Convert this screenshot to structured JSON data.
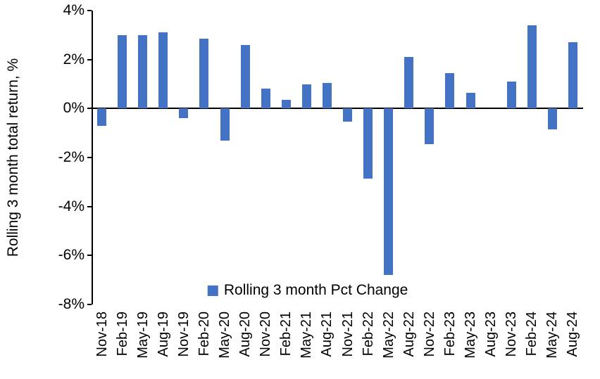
{
  "chart_data": {
    "type": "bar",
    "title": "",
    "xlabel": "",
    "ylabel": "Rolling 3 month total return, %",
    "ylim": [
      -8,
      4
    ],
    "yticks": [
      4,
      2,
      0,
      -2,
      -4,
      -6,
      -8
    ],
    "ytick_labels": [
      "4%",
      "2%",
      "0%",
      "-2%",
      "-4%",
      "-6%",
      "-8%"
    ],
    "grid": false,
    "bar_color": "#4472C4",
    "legend": {
      "label": "Rolling 3 month Pct Change",
      "color": "#4472C4",
      "position": "bottom-center-inside"
    },
    "categories": [
      "Nov-18",
      "Feb-19",
      "May-19",
      "Aug-19",
      "Nov-19",
      "Feb-20",
      "May-20",
      "Aug-20",
      "Nov-20",
      "Feb-21",
      "May-21",
      "Aug-21",
      "Nov-21",
      "Feb-22",
      "May-22",
      "Aug-22",
      "Nov-22",
      "Feb-23",
      "May-23",
      "Aug-23",
      "Nov-23",
      "Feb-24",
      "May-24",
      "Aug-24"
    ],
    "values": [
      -0.7,
      3.0,
      3.0,
      3.1,
      -0.4,
      2.85,
      -1.3,
      2.6,
      0.8,
      0.35,
      1.0,
      1.05,
      -0.55,
      -2.85,
      -6.8,
      2.1,
      -1.45,
      1.45,
      0.65,
      0,
      1.1,
      3.4,
      -0.85,
      2.7
    ]
  }
}
